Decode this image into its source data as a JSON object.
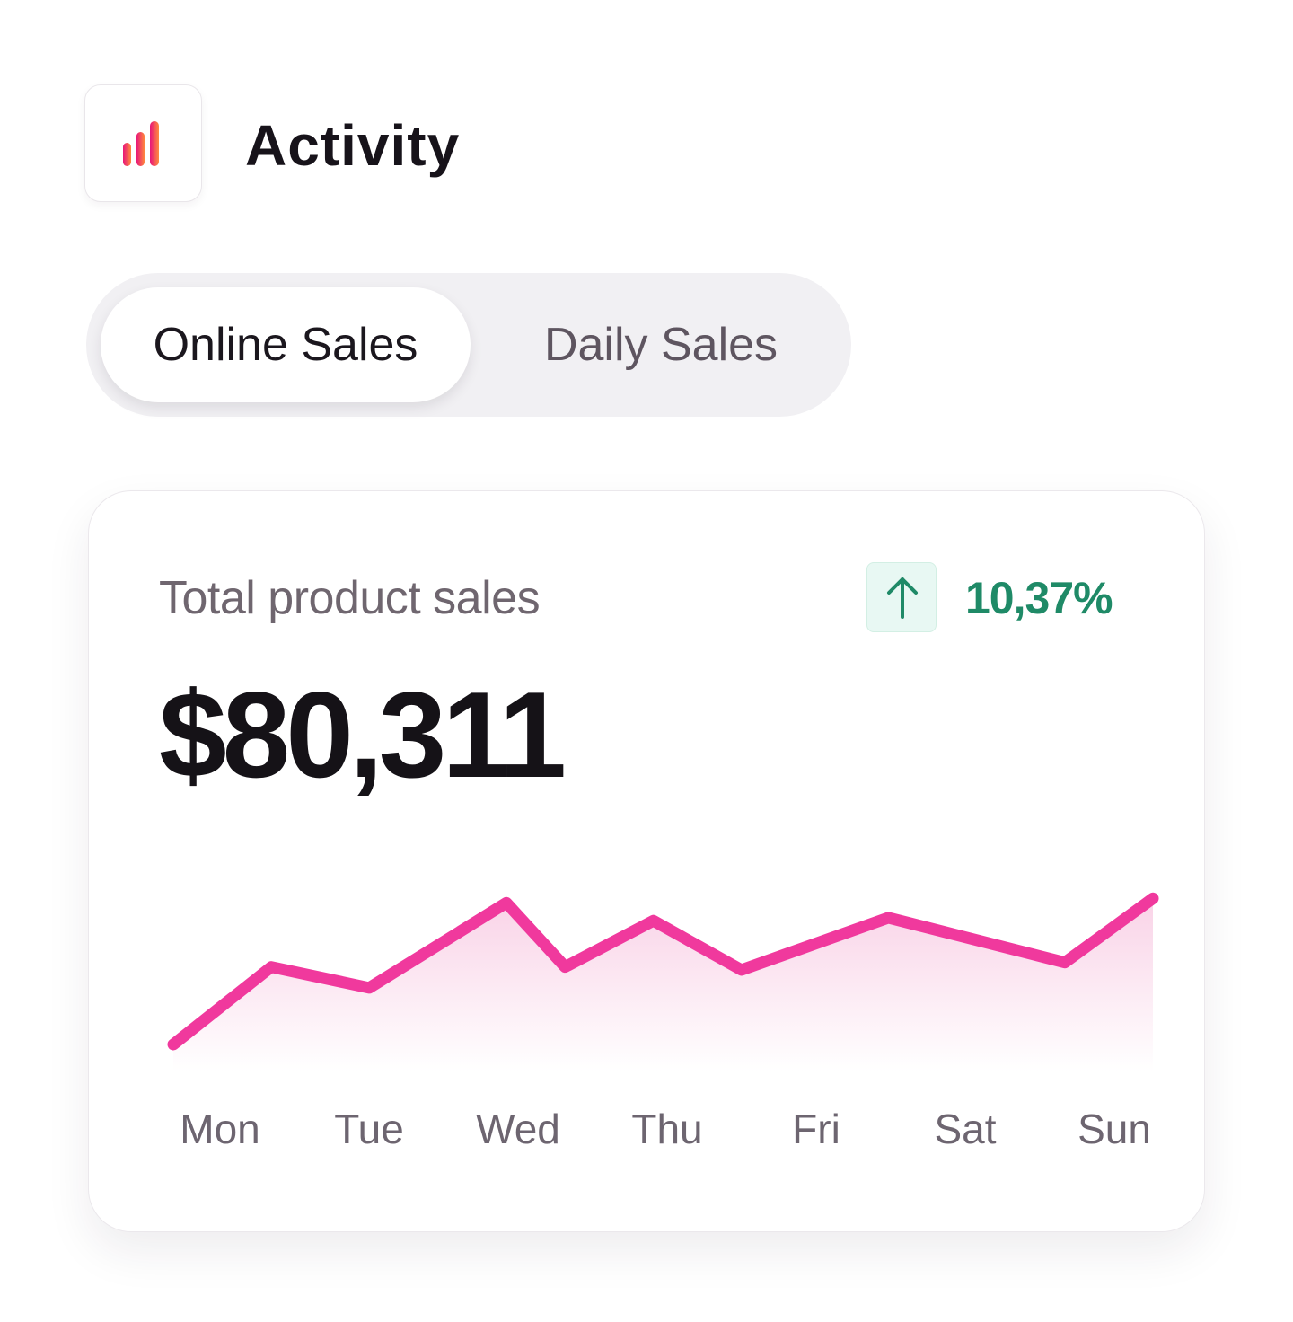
{
  "header": {
    "title": "Activity",
    "icon": "bar-chart-icon",
    "icon_gradient": [
      "#e8157a",
      "#ff8a3d"
    ]
  },
  "tabs": [
    {
      "label": "Online Sales",
      "active": true
    },
    {
      "label": "Daily Sales",
      "active": false
    }
  ],
  "card": {
    "label": "Total product sales",
    "value": "$80,311",
    "trend": {
      "direction": "up",
      "icon": "arrow-up-icon",
      "value": "10,37%",
      "color": "#1f8a67"
    }
  },
  "colors": {
    "line": "#f0399d",
    "fill": "#f7c4df"
  },
  "chart_data": {
    "type": "area",
    "categories": [
      "Mon",
      "Tue",
      "Wed",
      "Thu",
      "Fri",
      "Sat",
      "Sun"
    ],
    "x": [
      0,
      0.1,
      0.2,
      0.34,
      0.4,
      0.49,
      0.58,
      0.73,
      0.91,
      1.0
    ],
    "values": [
      0,
      0.52,
      0.38,
      0.95,
      0.52,
      0.83,
      0.5,
      0.85,
      0.55,
      0.98
    ],
    "grid": false,
    "legend": "none"
  }
}
